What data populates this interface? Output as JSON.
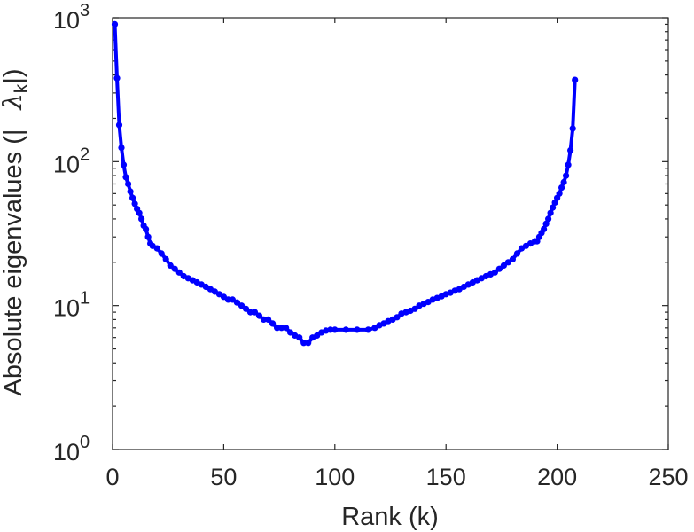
{
  "chart_data": {
    "type": "line",
    "title": "",
    "xlabel": "Rank (k)",
    "ylabel": {
      "prefix": "Absolute eigenvalues (|",
      "symbol": "λ",
      "subscript": "k",
      "suffix": "|)"
    },
    "xlim": [
      0,
      250
    ],
    "ylim": [
      1,
      1000
    ],
    "yscale": "log",
    "grid": false,
    "legend": "none",
    "xticks": [
      "0",
      "50",
      "100",
      "150",
      "200",
      "250"
    ],
    "yticks": [
      {
        "base": "10",
        "exp": "0"
      },
      {
        "base": "10",
        "exp": "1"
      },
      {
        "base": "10",
        "exp": "2"
      },
      {
        "base": "10",
        "exp": "3"
      }
    ],
    "series": [
      {
        "color": "#0000ff",
        "marker": "circle",
        "x": [
          1,
          2,
          3,
          4,
          5,
          6,
          7,
          8,
          9,
          10,
          11,
          12,
          13,
          14,
          15,
          16,
          17,
          18,
          20,
          22,
          24,
          26,
          28,
          30,
          32,
          34,
          36,
          38,
          40,
          42,
          44,
          46,
          48,
          50,
          52,
          54,
          56,
          58,
          60,
          62,
          64,
          66,
          68,
          70,
          72,
          74,
          76,
          78,
          80,
          82,
          84,
          86,
          88,
          90,
          92,
          94,
          96,
          98,
          100,
          105,
          110,
          115,
          118,
          120,
          122,
          124,
          126,
          128,
          130,
          132,
          134,
          136,
          138,
          140,
          142,
          144,
          146,
          148,
          150,
          152,
          154,
          156,
          158,
          160,
          162,
          164,
          166,
          168,
          170,
          172,
          174,
          176,
          178,
          180,
          182,
          184,
          186,
          188,
          190,
          191,
          192,
          193,
          194,
          195,
          196,
          197,
          198,
          199,
          200,
          201,
          202,
          203,
          204,
          205,
          206,
          207,
          208
        ],
        "values": [
          900,
          380,
          180,
          125,
          95,
          78,
          70,
          62,
          56,
          51,
          47,
          44,
          40,
          36,
          34,
          30,
          27,
          26,
          25,
          23,
          21,
          19,
          18,
          17,
          16,
          15.5,
          15,
          14.5,
          14,
          13.5,
          13,
          12.5,
          12,
          11.5,
          11,
          11,
          10.5,
          10,
          9.5,
          9,
          9,
          8.5,
          8,
          8,
          7.5,
          7,
          7,
          7,
          6.5,
          6.2,
          6,
          5.5,
          5.5,
          6,
          6.2,
          6.5,
          6.7,
          6.8,
          6.8,
          6.8,
          6.8,
          6.8,
          7,
          7.3,
          7.5,
          7.8,
          8,
          8.3,
          8.8,
          9,
          9.2,
          9.5,
          10,
          10.3,
          10.6,
          11,
          11.3,
          11.6,
          12,
          12.3,
          12.7,
          13,
          13.5,
          14,
          14.5,
          15,
          15.5,
          16,
          16.5,
          17,
          18,
          19,
          20,
          21,
          23,
          25,
          26,
          27,
          28,
          28,
          30,
          32,
          34,
          37,
          40,
          44,
          48,
          52,
          56,
          60,
          66,
          72,
          80,
          95,
          120,
          170,
          370
        ]
      }
    ]
  }
}
